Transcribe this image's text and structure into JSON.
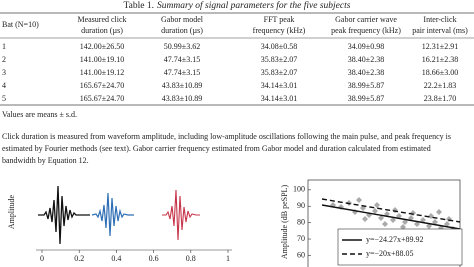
{
  "table": {
    "caption_label": "Table 1.",
    "caption": "Summary of signal parameters for the five subjects",
    "headers": [
      [
        "Bat (N=10)"
      ],
      [
        "Measured click",
        "duration (µs)"
      ],
      [
        "Gabor model",
        "duration (µs)"
      ],
      [
        "FFT peak",
        "frequency (kHz)"
      ],
      [
        "Gabor carrier wave",
        "peak frequency (kHz)"
      ],
      [
        "Inter-click",
        "pair interval (ms)"
      ]
    ],
    "rows": [
      [
        "1",
        "142.00±26.50",
        "50.99±3.62",
        "34.08±0.58",
        "34.09±0.98",
        "12.31±2.91"
      ],
      [
        "2",
        "141.00±19.10",
        "47.74±3.15",
        "35.83±2.07",
        "38.40±2.38",
        "16.21±2.38"
      ],
      [
        "3",
        "141.00±19.12",
        "47.74±3.15",
        "35.83±2.07",
        "38.40±2.38",
        "18.66±3.00"
      ],
      [
        "4",
        "165.67±24.70",
        "43.83±10.89",
        "34.14±3.01",
        "38.99±5.87",
        "22.2±1.83"
      ],
      [
        "5",
        "165.67±24.70",
        "43.83±10.89",
        "34.14±3.01",
        "38.99±5.87",
        "23.8±1.70"
      ]
    ],
    "note": "Values are means ± s.d."
  },
  "paragraph": [
    "Click duration is measured from waveform amplitude, including low-amplitude oscillations following the main pulse, and peak frequency is",
    "estimated by Fourier methods (see text). Gabor carrier frequency estimated from Gabor model and duration calculated from estimated",
    "bandwidth by Equation 12."
  ],
  "figures": [
    {
      "ylabel": "Amplitude",
      "xlim": [
        0,
        1
      ],
      "xticks": [
        0,
        0.2,
        0.4,
        0.6,
        0.8,
        1
      ]
    },
    {
      "ylabel": "Amplitude (dB peSPL)",
      "ylim": [
        56,
        106
      ],
      "yticks": [
        100,
        90,
        80,
        70,
        60
      ],
      "legend": [
        "y=−24.27x+89.92",
        "y=−20x+88.05"
      ]
    }
  ]
}
